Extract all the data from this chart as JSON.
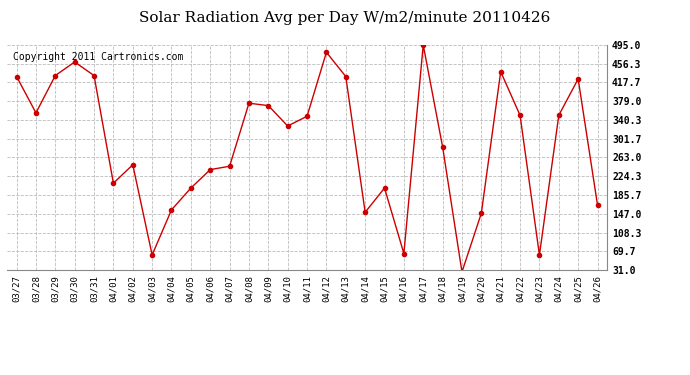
{
  "title": "Solar Radiation Avg per Day W/m2/minute 20110426",
  "copyright": "Copyright 2011 Cartronics.com",
  "dates": [
    "03/27",
    "03/28",
    "03/29",
    "03/30",
    "03/31",
    "04/01",
    "04/02",
    "04/03",
    "04/04",
    "04/05",
    "04/06",
    "04/07",
    "04/08",
    "04/09",
    "04/10",
    "04/11",
    "04/12",
    "04/13",
    "04/14",
    "04/15",
    "04/16",
    "04/17",
    "04/18",
    "04/19",
    "04/20",
    "04/21",
    "04/22",
    "04/23",
    "04/24",
    "04/25",
    "04/26"
  ],
  "values": [
    430,
    355,
    432,
    460,
    432,
    210,
    248,
    62,
    155,
    200,
    238,
    245,
    375,
    370,
    328,
    348,
    480,
    430,
    150,
    200,
    65,
    495,
    285,
    27,
    148,
    440,
    350,
    62,
    350,
    425,
    165
  ],
  "line_color": "#cc0000",
  "marker": "o",
  "marker_size": 3,
  "bg_color": "#ffffff",
  "grid_color": "#bbbbbb",
  "ylim": [
    31.0,
    495.0
  ],
  "yticks": [
    31.0,
    69.7,
    108.3,
    147.0,
    185.7,
    224.3,
    263.0,
    301.7,
    340.3,
    379.0,
    417.7,
    456.3,
    495.0
  ],
  "title_fontsize": 11,
  "copyright_fontsize": 7
}
